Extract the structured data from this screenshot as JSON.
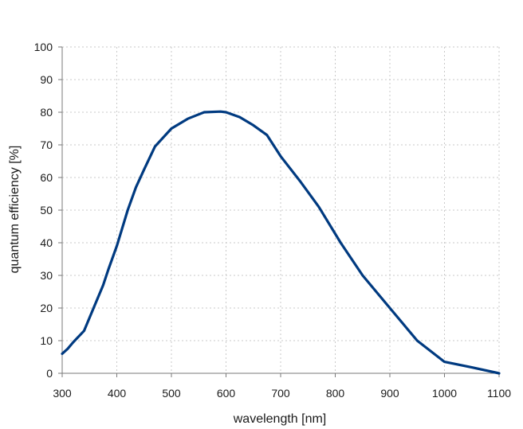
{
  "chart_data": {
    "type": "line",
    "title": "",
    "xlabel": "wavelength [nm]",
    "ylabel": "quantum efficiency [%]",
    "xlim": [
      300,
      1100
    ],
    "ylim": [
      0,
      100
    ],
    "xticks": [
      300,
      400,
      500,
      600,
      700,
      800,
      900,
      1000,
      1100
    ],
    "yticks": [
      0,
      10,
      20,
      30,
      40,
      50,
      60,
      70,
      80,
      90,
      100
    ],
    "grid": true,
    "legend": "none",
    "series_color": "#003a80",
    "series": [
      {
        "x": [
          300,
          310,
          320,
          340,
          360,
          375,
          385,
          400,
          420,
          435,
          450,
          470,
          500,
          530,
          560,
          590,
          600,
          625,
          640,
          650,
          675,
          700,
          735,
          770,
          810,
          850,
          900,
          950,
          1000,
          1050,
          1100
        ],
        "y": [
          6,
          7.5,
          9.5,
          13,
          21,
          27,
          32,
          39,
          50,
          57,
          62.5,
          69.5,
          75,
          78,
          80,
          80.2,
          80,
          78.5,
          77,
          76,
          73,
          66.5,
          59,
          51,
          40,
          30,
          20,
          10,
          3.5,
          1.8,
          0
        ]
      }
    ]
  }
}
